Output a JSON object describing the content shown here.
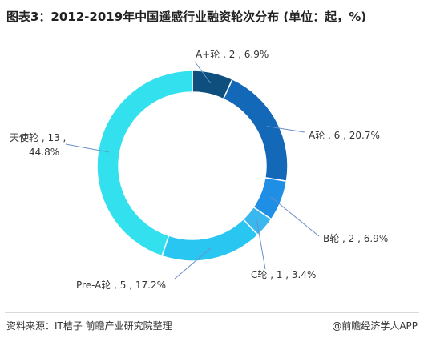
{
  "title": "图表3：2012-2019年中国遥感行业融资轮次分布 (单位：起，%)",
  "source": "资料来源：IT桔子 前瞻产业研究院整理",
  "brand": "@前瞻经济学人APP",
  "colors": {
    "c_a_plus": "#0e4f7e",
    "c_a": "#1468b8",
    "c_b": "#1f8fe6",
    "c_c": "#39b7ee",
    "c_pre_a": "#28c6f0",
    "c_angel": "#33e0ee",
    "leader": "#6b8fc9"
  },
  "chart_data": {
    "type": "pie",
    "donut": true,
    "title": "图表3：2012-2019年中国遥感行业融资轮次分布 (单位：起，%)",
    "unit": "起，%",
    "slices": [
      {
        "label": "A+轮",
        "value": 2,
        "percent": "6.9%",
        "display": "A+轮 , 2 , 6.9%"
      },
      {
        "label": "A轮",
        "value": 6,
        "percent": "20.7%",
        "display": "A轮 , 6 , 20.7%"
      },
      {
        "label": "B轮",
        "value": 2,
        "percent": "6.9%",
        "display": "B轮 , 2 , 6.9%"
      },
      {
        "label": "C轮",
        "value": 1,
        "percent": "3.4%",
        "display": "C轮 , 1 , 3.4%"
      },
      {
        "label": "Pre-A轮",
        "value": 5,
        "percent": "17.2%",
        "display": "Pre-A轮 , 5 , 17.2%"
      },
      {
        "label": "天使轮",
        "value": 13,
        "percent": "44.8%",
        "display_line1": "天使轮 , 13 ,",
        "display_line2": "44.8%"
      }
    ]
  }
}
